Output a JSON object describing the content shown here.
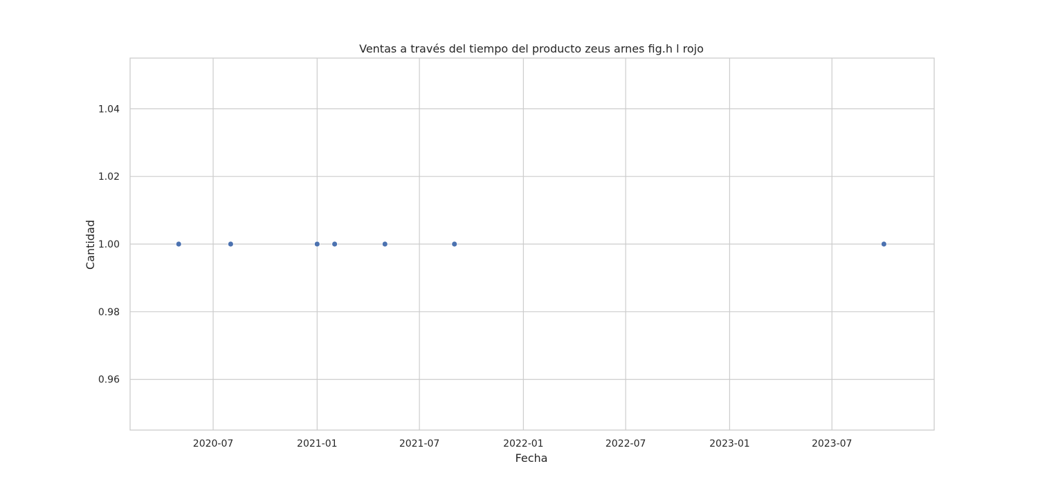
{
  "chart_data": {
    "type": "scatter",
    "title": "Ventas a través del tiempo del producto zeus arnes fig.h  l  rojo",
    "xlabel": "Fecha",
    "ylabel": "Cantidad",
    "x_type": "date",
    "xlim": [
      "2020-02-05",
      "2023-12-29"
    ],
    "ylim": [
      0.945,
      1.055
    ],
    "x_ticks": [
      "2020-07",
      "2021-01",
      "2021-07",
      "2022-01",
      "2022-07",
      "2023-01",
      "2023-07"
    ],
    "y_ticks": [
      "0.96",
      "0.98",
      "1.00",
      "1.02",
      "1.04"
    ],
    "grid": true,
    "series": [
      {
        "color": "#4c72b0",
        "points": [
          {
            "x": "2020-05-01",
            "y": 1
          },
          {
            "x": "2020-08-01",
            "y": 1
          },
          {
            "x": "2021-01-01",
            "y": 1
          },
          {
            "x": "2021-02-01",
            "y": 1
          },
          {
            "x": "2021-05-01",
            "y": 1
          },
          {
            "x": "2021-09-01",
            "y": 1
          },
          {
            "x": "2023-10-01",
            "y": 1
          }
        ]
      }
    ]
  }
}
